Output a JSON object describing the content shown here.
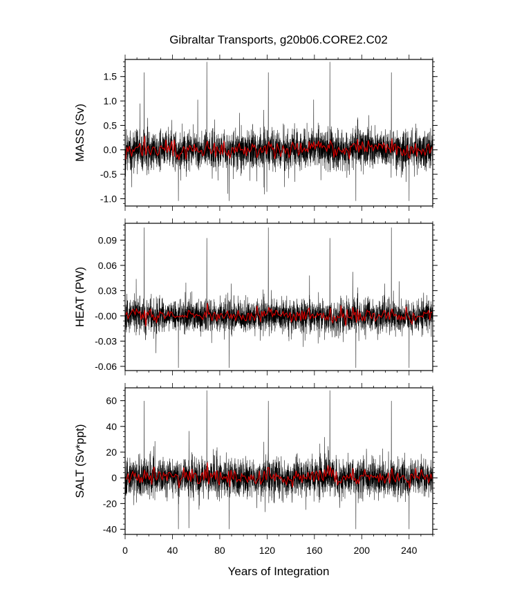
{
  "title": "Gibraltar Transports, g20b06.CORE2.C02",
  "xlabel": "Years of Integration",
  "colors": {
    "raw": "#000000",
    "smooth": "#dd0000",
    "frame": "#000000"
  },
  "chart_data": [
    {
      "type": "line",
      "ylabel": "MASS (Sv)",
      "xlim": [
        0,
        260
      ],
      "ylim": [
        -1.15,
        1.85
      ],
      "yticks": [
        -1.0,
        -0.5,
        0.0,
        0.5,
        1.0,
        1.5
      ],
      "ytick_labels": [
        "-1.0",
        "-0.5",
        "0.0",
        "0.5",
        "1.0",
        "1.5"
      ],
      "xticks": [
        0,
        40,
        80,
        120,
        160,
        200,
        240
      ],
      "series": [
        {
          "role": "monthly",
          "typical_range": [
            -0.4,
            0.4
          ],
          "max_spike": 1.8,
          "min_spike": -1.1
        },
        {
          "role": "smoothed",
          "typical_range": [
            -0.1,
            0.15
          ]
        }
      ]
    },
    {
      "type": "line",
      "ylabel": "HEAT (PW)",
      "xlim": [
        0,
        260
      ],
      "ylim": [
        -0.065,
        0.11
      ],
      "yticks": [
        -0.06,
        -0.03,
        0.0,
        0.03,
        0.06,
        0.09
      ],
      "ytick_labels": [
        "-0.06",
        "-0.03",
        "-0.00",
        "0.03",
        "0.06",
        "0.09"
      ],
      "xticks": [
        0,
        40,
        80,
        120,
        160,
        200,
        240
      ],
      "series": [
        {
          "role": "monthly",
          "typical_range": [
            -0.02,
            0.02
          ],
          "max_spike": 0.105,
          "min_spike": -0.065
        },
        {
          "role": "smoothed",
          "typical_range": [
            -0.005,
            0.008
          ]
        }
      ]
    },
    {
      "type": "line",
      "ylabel": "SALT (Sv*ppt)",
      "xlim": [
        0,
        260
      ],
      "ylim": [
        -44,
        70
      ],
      "yticks": [
        -40,
        -20,
        0,
        20,
        40,
        60
      ],
      "ytick_labels": [
        "-40",
        "-20",
        "0",
        "20",
        "40",
        "60"
      ],
      "xticks": [
        0,
        40,
        80,
        120,
        160,
        200,
        240
      ],
      "xtick_labels": [
        "0",
        "40",
        "80",
        "120",
        "160",
        "200",
        "240"
      ],
      "series": [
        {
          "role": "monthly",
          "typical_range": [
            -15,
            15
          ],
          "max_spike": 68,
          "min_spike": -42
        },
        {
          "role": "smoothed",
          "typical_range": [
            -4,
            6
          ]
        }
      ]
    }
  ]
}
